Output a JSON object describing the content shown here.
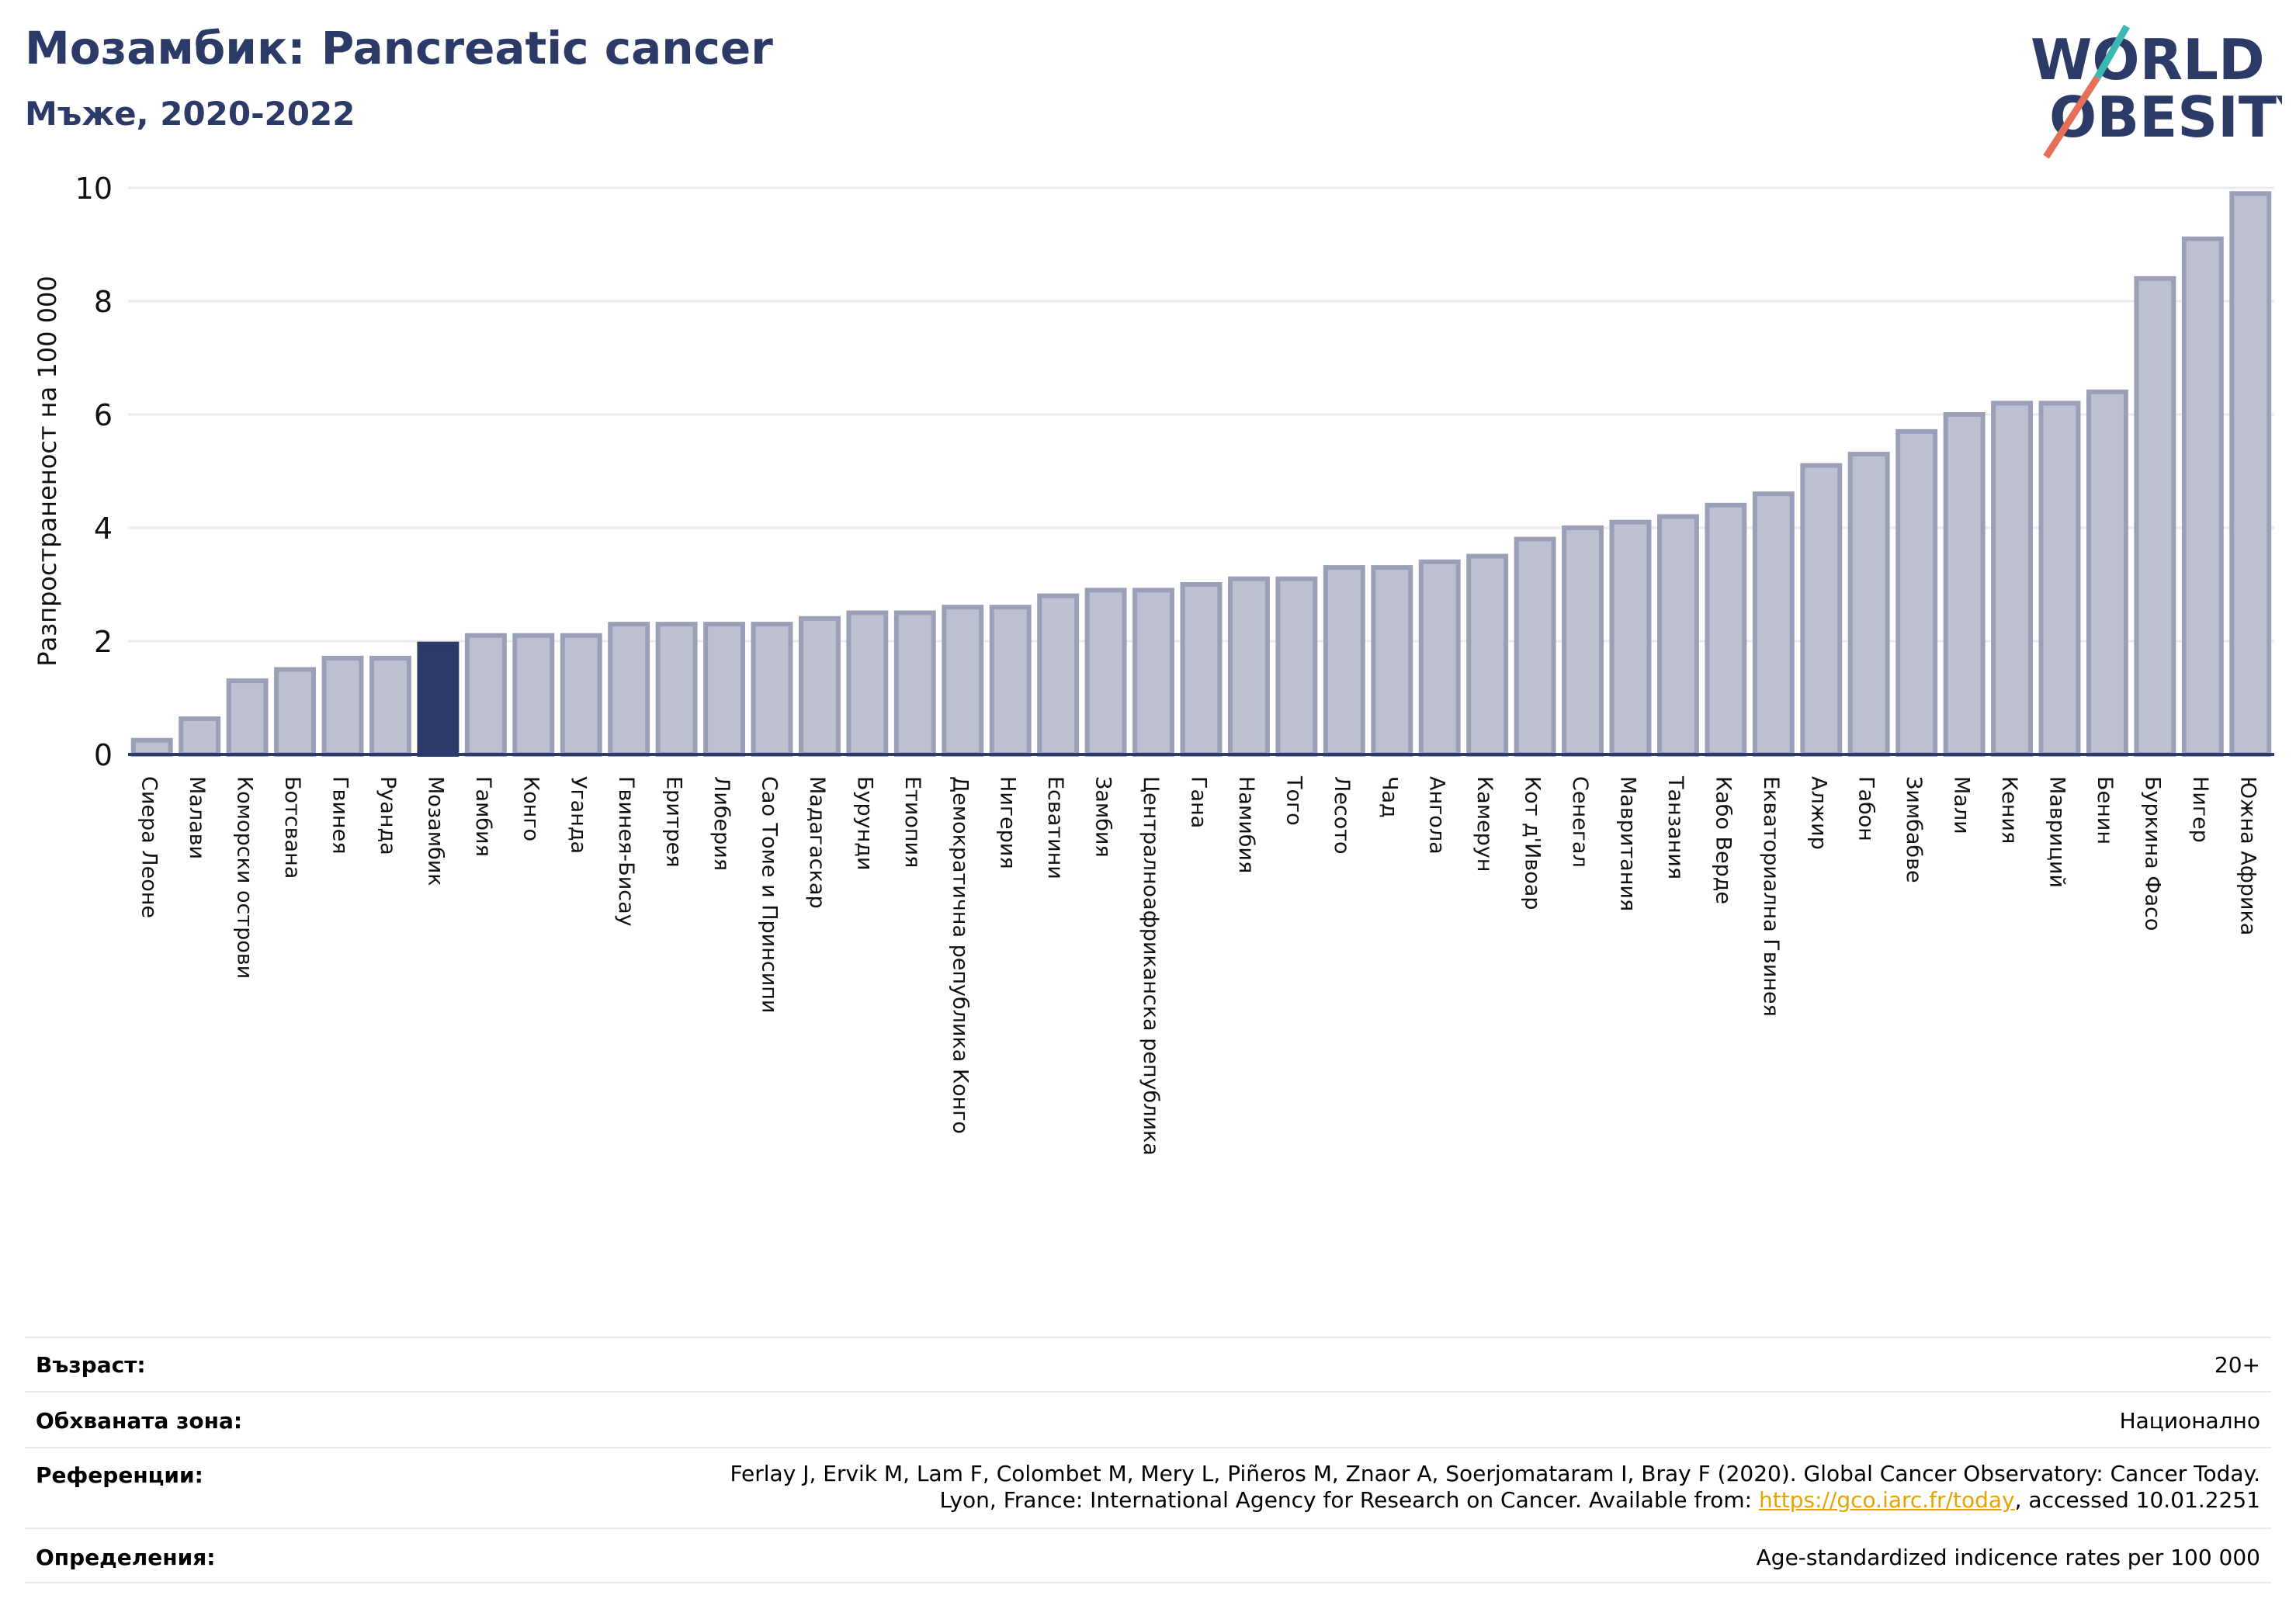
{
  "header": {
    "title": "Мозамбик: Pancreatic cancer",
    "subtitle": "Мъже, 2020-2022"
  },
  "logo": {
    "line1": "WORLD",
    "line2": "OBESITY",
    "text_color": "#2b3a67",
    "slash_colors": [
      "#3bb8b0",
      "#e5705a"
    ]
  },
  "colors": {
    "bar_fill": "#bcc0d0",
    "bar_stroke": "#9aa0b8",
    "highlight_fill": "#2b3a67",
    "gridline": "#ebebf0",
    "axis": "#2b3a67"
  },
  "chart_data": {
    "type": "bar",
    "title": "Мозамбик: Pancreatic cancer",
    "subtitle": "Мъже, 2020-2022",
    "ylabel": "Разпространеност  на 100 000",
    "xlabel": "",
    "ylim": [
      0,
      10
    ],
    "yticks": [
      0,
      2,
      4,
      6,
      8,
      10
    ],
    "grid": true,
    "highlight": "Мозамбик",
    "categories": [
      "Сиера Леоне",
      "Малави",
      "Коморски острови",
      "Ботсвана",
      "Гвинея",
      "Руанда",
      "Мозамбик",
      "Гамбия",
      "Конго",
      "Уганда",
      "Гвинея-Бисау",
      "Еритрея",
      "Либерия",
      "Сао Томе и Принсипи",
      "Мадагаскар",
      "Бурунди",
      "Етиопия",
      "Демократична република Конго",
      "Нигерия",
      "Есватини",
      "Замбия",
      "Централноафриканска република",
      "Гана",
      "Намибия",
      "Того",
      "Лесото",
      "Чад",
      "Ангола",
      "Камерун",
      "Кот д'Ивоар",
      "Сенегал",
      "Мавритания",
      "Танзания",
      "Кабо Верде",
      "Екваториална Гвинея",
      "Алжир",
      "Габон",
      "Зимбабве",
      "Мали",
      "Кения",
      "Мавриций",
      "Бенин",
      "Буркина Фасо",
      "Нигер",
      "Южна Африка"
    ],
    "values": [
      0.25,
      0.63,
      1.3,
      1.5,
      1.7,
      1.7,
      1.95,
      2.1,
      2.1,
      2.1,
      2.3,
      2.3,
      2.3,
      2.3,
      2.4,
      2.5,
      2.5,
      2.6,
      2.6,
      2.8,
      2.9,
      2.9,
      3.0,
      3.1,
      3.1,
      3.3,
      3.3,
      3.4,
      3.5,
      3.8,
      4.0,
      4.1,
      4.2,
      4.4,
      4.6,
      5.1,
      5.3,
      5.7,
      6.0,
      6.2,
      6.2,
      6.4,
      8.4,
      9.1,
      9.9
    ]
  },
  "info": {
    "age_label": "Възраст:",
    "age_value": "20+",
    "coverage_label": "Обхваната зона:",
    "coverage_value": "Национално",
    "references_label": "Референции:",
    "references_line1": "Ferlay J, Ervik M, Lam F, Colombet M, Mery L, Piñeros M, Znaor A, Soerjomataram I, Bray F (2020). Global Cancer Observatory: Cancer Today.",
    "references_line2_prefix": "Lyon, France: International Agency for Research on Cancer. Available from: ",
    "references_link": "https://gco.iarc.fr/today",
    "references_line2_suffix": ", accessed 10.01.2251",
    "definitions_label": "Определения:",
    "definitions_value": "Age-standardized indicence rates per 100 000"
  }
}
